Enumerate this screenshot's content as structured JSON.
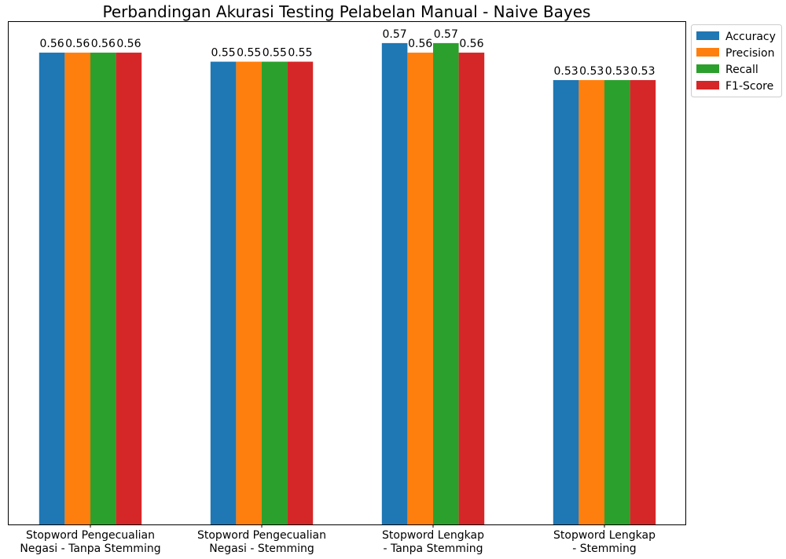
{
  "chart_data": {
    "type": "bar",
    "title": "Perbandingan Akurasi Testing Pelabelan Manual - Naive Bayes",
    "xlabel": "",
    "ylabel": "",
    "categories": [
      [
        "Stopword Pengecualian",
        "Negasi - Tanpa Stemming"
      ],
      [
        "Stopword Pengecualian",
        "Negasi - Stemming"
      ],
      [
        "Stopword Lengkap",
        "- Tanpa Stemming"
      ],
      [
        "Stopword Lengkap",
        "- Stemming"
      ]
    ],
    "series": [
      {
        "name": "Accuracy",
        "color": "#1f77b4",
        "values": [
          0.5634,
          0.5526,
          0.5748,
          0.5306
        ],
        "labels": [
          "0.56",
          "0.55",
          "0.57",
          "0.53"
        ]
      },
      {
        "name": "Precision",
        "color": "#ff7f0e",
        "values": [
          0.5634,
          0.5526,
          0.5634,
          0.5306
        ],
        "labels": [
          "0.56",
          "0.55",
          "0.56",
          "0.53"
        ]
      },
      {
        "name": "Recall",
        "color": "#2ca02c",
        "values": [
          0.5634,
          0.5526,
          0.5748,
          0.5306
        ],
        "labels": [
          "0.56",
          "0.55",
          "0.57",
          "0.53"
        ]
      },
      {
        "name": "F1-Score",
        "color": "#d62728",
        "values": [
          0.5634,
          0.5526,
          0.5634,
          0.5306
        ],
        "labels": [
          "0.56",
          "0.55",
          "0.56",
          "0.53"
        ]
      }
    ],
    "ylim": [
      0,
      0.6
    ],
    "y_ticks_visible": false,
    "grid": false,
    "legend_position": "upper right, outside plot"
  }
}
